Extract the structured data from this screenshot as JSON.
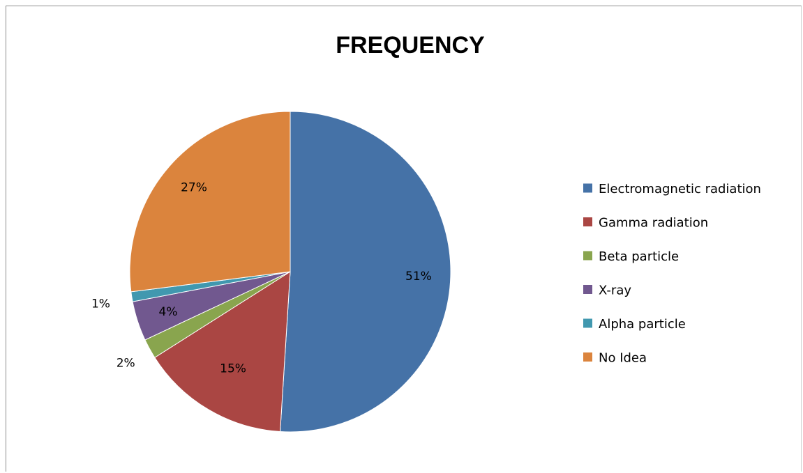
{
  "chart_data": {
    "type": "pie",
    "title": "FREQUENCY",
    "categories": [
      "Electromagnetic radiation",
      "Gamma radiation",
      "Beta particle",
      "X-ray",
      "Alpha particle",
      "No Idea"
    ],
    "values": [
      51,
      15,
      2,
      4,
      1,
      27
    ],
    "labels": [
      "51%",
      "15%",
      "2%",
      "4%",
      "1%",
      "27%"
    ],
    "colors": [
      "#4572A7",
      "#AA4643",
      "#89A54E",
      "#71588F",
      "#4198AF",
      "#DB843D"
    ],
    "legend_position": "right",
    "start_direction": "top, clockwise"
  }
}
